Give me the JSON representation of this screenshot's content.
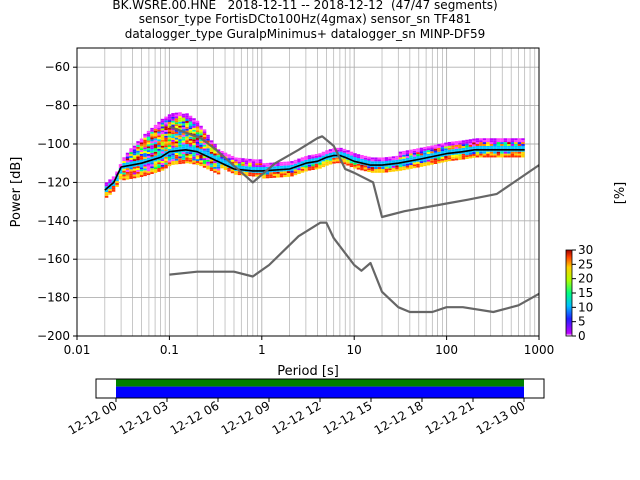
{
  "title": {
    "line1": "BK.WSRE.00.HNE   2018-12-11 -- 2018-12-12  (47/47 segments)",
    "line2": "sensor_type FortisDCto100Hz(4gmax) sensor_sn TF481",
    "line3": "datalogger_type GuralpMinimus+ datalogger_sn MINP-DF59"
  },
  "chart_data": [
    {
      "type": "heatmap",
      "xlabel": "Period [s]",
      "ylabel": "Power [dB]",
      "xscale": "log",
      "xlim": [
        0.01,
        1000
      ],
      "ylim": [
        -200,
        -50
      ],
      "xticks": [
        {
          "v": 0.01,
          "label": "0.01"
        },
        {
          "v": 0.1,
          "label": "0.1"
        },
        {
          "v": 1,
          "label": "1"
        },
        {
          "v": 10,
          "label": "10"
        },
        {
          "v": 100,
          "label": "100"
        },
        {
          "v": 1000,
          "label": "1000"
        }
      ],
      "yticks": [
        {
          "v": -60,
          "label": "−60"
        },
        {
          "v": -80,
          "label": "−80"
        },
        {
          "v": -100,
          "label": "−100"
        },
        {
          "v": -120,
          "label": "−120"
        },
        {
          "v": -140,
          "label": "−140"
        },
        {
          "v": -160,
          "label": "−160"
        },
        {
          "v": -180,
          "label": "−180"
        },
        {
          "v": -200,
          "label": "−200"
        }
      ],
      "grid": true,
      "series": [
        {
          "color": "#000000",
          "points": [
            [
              0.02,
              -124
            ],
            [
              0.025,
              -120
            ],
            [
              0.03,
              -112
            ],
            [
              0.05,
              -110
            ],
            [
              0.08,
              -107
            ],
            [
              0.1,
              -104
            ],
            [
              0.15,
              -103
            ],
            [
              0.2,
              -104
            ],
            [
              0.3,
              -108
            ],
            [
              0.5,
              -113
            ],
            [
              0.8,
              -114
            ],
            [
              1,
              -114
            ],
            [
              2,
              -113
            ],
            [
              3,
              -110
            ],
            [
              4,
              -109
            ],
            [
              5,
              -107
            ],
            [
              6,
              -106
            ],
            [
              7,
              -106
            ],
            [
              8,
              -107
            ],
            [
              10,
              -109
            ],
            [
              15,
              -111
            ],
            [
              20,
              -111
            ],
            [
              30,
              -110
            ],
            [
              50,
              -108
            ],
            [
              80,
              -106
            ],
            [
              100,
              -105
            ],
            [
              150,
              -104
            ],
            [
              200,
              -103
            ],
            [
              400,
              -103
            ],
            [
              700,
              -103
            ]
          ]
        },
        {
          "color": "#666666",
          "points": [
            [
              0.1,
              -91
            ],
            [
              0.22,
              -97
            ],
            [
              0.32,
              -103
            ],
            [
              0.8,
              -120
            ],
            [
              1.4,
              -110
            ],
            [
              2.5,
              -103
            ],
            [
              4,
              -97
            ],
            [
              4.5,
              -96
            ],
            [
              6,
              -101
            ],
            [
              8,
              -113
            ],
            [
              10,
              -115
            ],
            [
              16,
              -120
            ],
            [
              20,
              -138
            ],
            [
              35,
              -135
            ],
            [
              100,
              -131
            ],
            [
              170,
              -129
            ],
            [
              350,
              -126
            ],
            [
              1000,
              -111
            ]
          ]
        },
        {
          "color": "#666666",
          "points": [
            [
              0.1,
              -168
            ],
            [
              0.2,
              -166.5
            ],
            [
              0.5,
              -166.5
            ],
            [
              0.8,
              -169
            ],
            [
              1.2,
              -163
            ],
            [
              2.5,
              -148
            ],
            [
              4.3,
              -141
            ],
            [
              5,
              -141
            ],
            [
              6,
              -149
            ],
            [
              10,
              -163
            ],
            [
              12,
              -166
            ],
            [
              15,
              -162
            ],
            [
              20,
              -177
            ],
            [
              30,
              -185
            ],
            [
              40,
              -187.5
            ],
            [
              70,
              -187.5
            ],
            [
              100,
              -185
            ],
            [
              150,
              -185
            ],
            [
              320,
              -187.5
            ],
            [
              600,
              -184
            ],
            [
              1000,
              -178
            ]
          ]
        }
      ],
      "colorbar": {
        "label": "[%]",
        "range": [
          0,
          30
        ],
        "ticks": [
          0,
          5,
          10,
          15,
          20,
          25,
          30
        ]
      }
    },
    {
      "type": "bar",
      "xticks": [
        "12-12 00",
        "12-12 03",
        "12-12 06",
        "12-12 09",
        "12-12 12",
        "12-12 15",
        "12-12 18",
        "12-12 21",
        "12-13 00"
      ],
      "bands": [
        {
          "color": "#008000",
          "fraction": 0.4
        },
        {
          "color": "#0000ff",
          "fraction": 0.6
        }
      ]
    }
  ],
  "colors": {
    "grid": "#b0b0b0",
    "mean": "#000000",
    "noise_models": "#666666",
    "coverage_upper": "#008000",
    "coverage_lower": "#0000ff"
  }
}
